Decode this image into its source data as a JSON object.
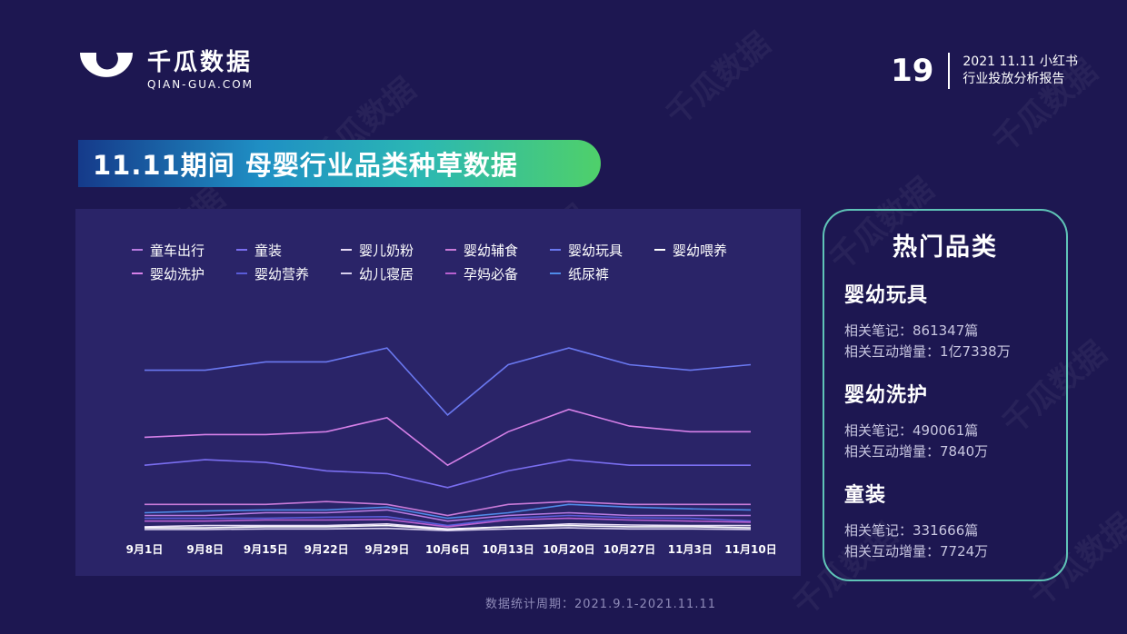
{
  "logo": {
    "name": "千瓜数据",
    "domain": "QIAN-GUA.COM",
    "watermark": "千瓜数据"
  },
  "header": {
    "page_number": "19",
    "report_line1": "2021 11.11 小红书",
    "report_line2": "行业投放分析报告"
  },
  "title": "11.11期间 母婴行业品类种草数据",
  "chart_data": {
    "type": "line",
    "categories": [
      "9月1日",
      "9月8日",
      "9月15日",
      "9月22日",
      "9月29日",
      "10月6日",
      "10月13日",
      "10月20日",
      "10月27日",
      "11月3日",
      "11月10日"
    ],
    "series": [
      {
        "name": "童车出行",
        "color": "#b77be0",
        "values": [
          3,
          3,
          3.5,
          3.5,
          4,
          2,
          3,
          3.5,
          3,
          3,
          3
        ]
      },
      {
        "name": "童装",
        "color": "#7a6ef0",
        "values": [
          12,
          13,
          12.5,
          11,
          10.5,
          8,
          11,
          13,
          12,
          12,
          12
        ]
      },
      {
        "name": "婴儿奶粉",
        "color": "#e8dcf6",
        "values": [
          1,
          1.2,
          1.2,
          1.2,
          1.5,
          0.6,
          1,
          1.5,
          1.3,
          1.2,
          1.2
        ]
      },
      {
        "name": "婴幼辅食",
        "color": "#c87ad8",
        "values": [
          5,
          5,
          5,
          5.5,
          5,
          3,
          5,
          5.5,
          5,
          5,
          5
        ]
      },
      {
        "name": "婴幼玩具",
        "color": "#6a78f0",
        "values": [
          29,
          29,
          30.5,
          30.5,
          33,
          21,
          30,
          33,
          30,
          29,
          30
        ]
      },
      {
        "name": "婴幼喂养",
        "color": "#ffffff",
        "values": [
          0.8,
          0.8,
          1,
          1,
          1.2,
          0.5,
          1,
          1.2,
          1,
          1,
          0.8
        ]
      },
      {
        "name": "婴幼洗护",
        "color": "#d680e8",
        "values": [
          17,
          17.5,
          17.5,
          18,
          20.5,
          12,
          18,
          22,
          19,
          18,
          18
        ]
      },
      {
        "name": "婴幼营养",
        "color": "#5a5cd8",
        "values": [
          2.5,
          2.5,
          2.5,
          2.7,
          2.8,
          1.2,
          2.5,
          3,
          2.6,
          2.5,
          2
        ]
      },
      {
        "name": "幼儿寝居",
        "color": "#d8d0ee",
        "values": [
          0.5,
          0.5,
          0.6,
          0.6,
          0.7,
          0.3,
          0.6,
          0.8,
          0.6,
          0.6,
          0.5
        ]
      },
      {
        "name": "孕妈必备",
        "color": "#b760d0",
        "values": [
          2,
          2,
          2.2,
          2.2,
          2.3,
          1,
          2.2,
          2.5,
          2.2,
          2,
          1.8
        ]
      },
      {
        "name": "纸尿裤",
        "color": "#4f8be8",
        "values": [
          3.5,
          3.8,
          4,
          4,
          4.5,
          2.5,
          3.5,
          5,
          4.5,
          4.2,
          4
        ]
      }
    ],
    "ylim": [
      0,
      40
    ]
  },
  "side": {
    "title": "热门品类",
    "items": [
      {
        "name": "婴幼玩具",
        "notes": "相关笔记：861347篇",
        "growth": "相关互动增量：1亿7338万"
      },
      {
        "name": "婴幼洗护",
        "notes": "相关笔记：490061篇",
        "growth": "相关互动增量：7840万"
      },
      {
        "name": "童装",
        "notes": "相关笔记：331666篇",
        "growth": "相关互动增量：7724万"
      }
    ]
  },
  "footer": "数据统计周期：2021.9.1-2021.11.11",
  "colors": {
    "background": "#1d1751",
    "panel": "#2a2468",
    "card_border": "#5fc4b7"
  }
}
